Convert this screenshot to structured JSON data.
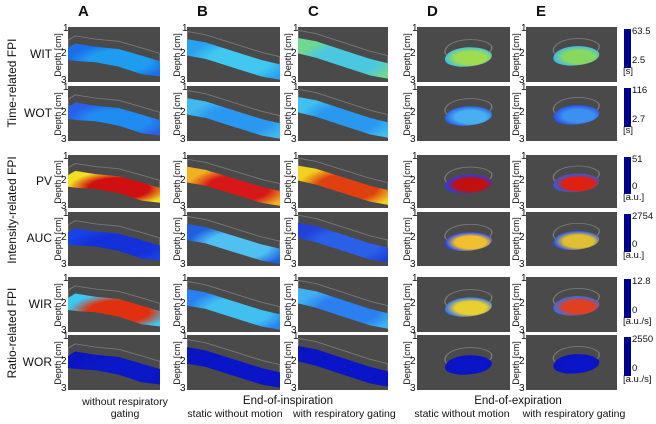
{
  "columns": [
    {
      "letter": "A"
    },
    {
      "letter": "B"
    },
    {
      "letter": "C"
    },
    {
      "letter": "D"
    },
    {
      "letter": "E"
    }
  ],
  "groups": [
    "Time-related FPI",
    "Intensity-related FPI",
    "Ratio-related FPI"
  ],
  "axis": {
    "label": "Depth [cm]",
    "ticks": [
      "1",
      "2",
      "3"
    ]
  },
  "rows": [
    {
      "label": "WIT",
      "colorbar": {
        "max": "63.5",
        "min": "2.5",
        "unit": "[s]"
      },
      "cells": [
        [
          "#1e9cf0",
          "#1a6ee8"
        ],
        [
          "#40c8f0",
          "#2aa0f0"
        ],
        [
          "#4ac8e0",
          "#70d890"
        ],
        [
          "#a0dc50",
          "#40c0e0"
        ],
        [
          "#88d860",
          "#40b8e8"
        ]
      ]
    },
    {
      "label": "WOT",
      "colorbar": {
        "max": "116",
        "min": "2.7",
        "unit": "[s]"
      },
      "cells": [
        [
          "#1e8cf0",
          "#2a60e8"
        ],
        [
          "#2a98f0",
          "#40b8f0"
        ],
        [
          "#2a98f0",
          "#40c0f0"
        ],
        [
          "#48b0f0",
          "#2a60e8"
        ],
        [
          "#3c90f0",
          "#2a50e8"
        ]
      ]
    },
    {
      "label": "PV",
      "colorbar": {
        "max": "51",
        "min": "0",
        "unit": "[a.u.]"
      },
      "cells": [
        [
          "#d01010",
          "#f0e020"
        ],
        [
          "#d81818",
          "#f0b020"
        ],
        [
          "#e04010",
          "#f0d020"
        ],
        [
          "#c01010",
          "#2040f0"
        ],
        [
          "#e02010",
          "#2060f0"
        ]
      ]
    },
    {
      "label": "AUC",
      "colorbar": {
        "max": "2754",
        "min": "0",
        "unit": "[a.u.]"
      },
      "cells": [
        [
          "#1430d8",
          "#1a40e8"
        ],
        [
          "#50c0f0",
          "#2060e0"
        ],
        [
          "#2a60e8",
          "#2040d8"
        ],
        [
          "#f0c030",
          "#2040f0"
        ],
        [
          "#e0c030",
          "#2050f0"
        ]
      ]
    },
    {
      "label": "WIR",
      "colorbar": {
        "max": "12.8",
        "min": "0",
        "unit": "[a.u./s]"
      },
      "cells": [
        [
          "#e03010",
          "#3cc8f0"
        ],
        [
          "#40c0f0",
          "#2a80f0"
        ],
        [
          "#2a80f0",
          "#40b0f0"
        ],
        [
          "#e8d030",
          "#3070f0"
        ],
        [
          "#e04020",
          "#3070f0"
        ]
      ]
    },
    {
      "label": "WOR",
      "colorbar": {
        "max": "2550",
        "min": "0",
        "unit": "[a.u./s]"
      },
      "cells": [
        [
          "#0a18c8",
          "#0a14c0"
        ],
        [
          "#0a14c8",
          "#0a14c0"
        ],
        [
          "#0a14c8",
          "#0a14c0"
        ],
        [
          "#0a14c8",
          "#0a14c0"
        ],
        [
          "#0a14c8",
          "#0a14c0"
        ]
      ]
    }
  ],
  "captions": {
    "a": "without respiratory gating",
    "insp_title": "End-of-inspiration",
    "insp_b": "static without motion",
    "insp_c": "with respiratory gating",
    "exp_title": "End-of-expiration",
    "exp_d": "static without motion",
    "exp_e": "with respiratory gating"
  },
  "colors": {
    "panel_bg": "#4a4a4a",
    "colormap": [
      "#00008f",
      "#0040ff",
      "#00c0ff",
      "#40ff80",
      "#ffff00",
      "#ff8000",
      "#e00000",
      "#800000"
    ]
  }
}
